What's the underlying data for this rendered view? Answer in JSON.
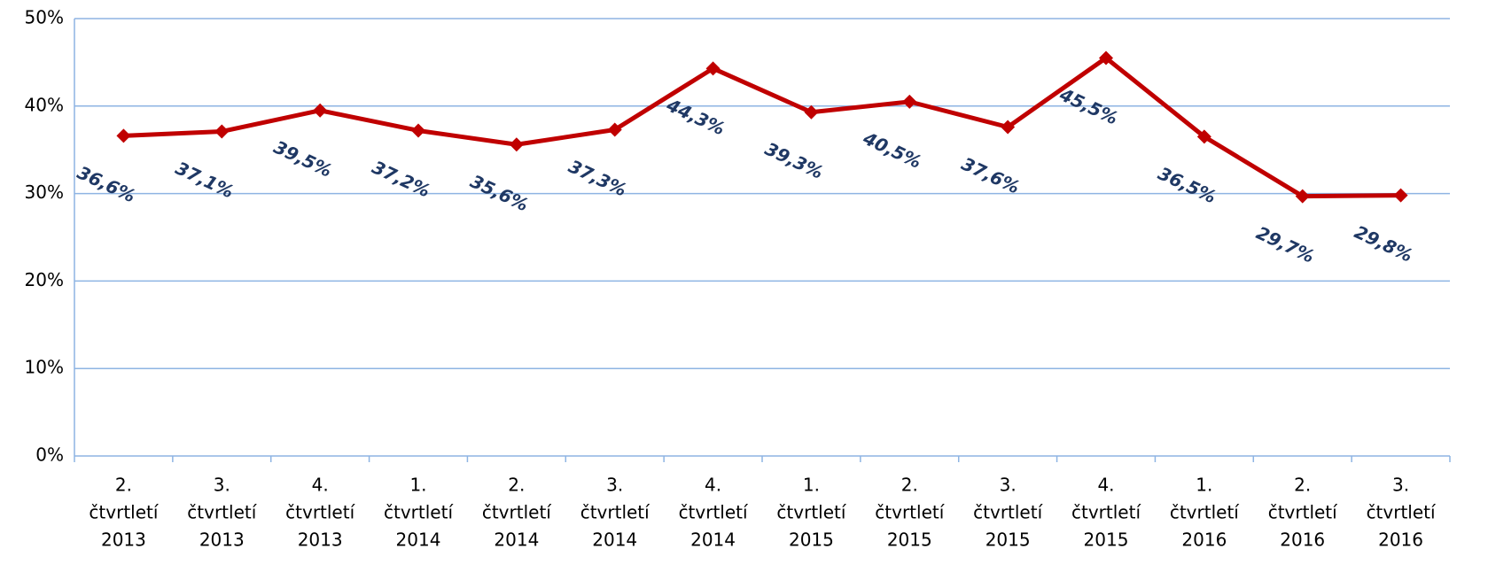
{
  "chart_data": {
    "type": "line",
    "categories": [
      [
        "2.",
        "čtvrtletí",
        "2013"
      ],
      [
        "3.",
        "čtvrtletí",
        "2013"
      ],
      [
        "4.",
        "čtvrtletí",
        "2013"
      ],
      [
        "1.",
        "čtvrtletí",
        "2014"
      ],
      [
        "2.",
        "čtvrtletí",
        "2014"
      ],
      [
        "3.",
        "čtvrtletí",
        "2014"
      ],
      [
        "4.",
        "čtvrtletí",
        "2014"
      ],
      [
        "1.",
        "čtvrtletí",
        "2015"
      ],
      [
        "2.",
        "čtvrtletí",
        "2015"
      ],
      [
        "3.",
        "čtvrtletí",
        "2015"
      ],
      [
        "4.",
        "čtvrtletí",
        "2015"
      ],
      [
        "1.",
        "čtvrtletí",
        "2016"
      ],
      [
        "2.",
        "čtvrtletí",
        "2016"
      ],
      [
        "3.",
        "čtvrtletí",
        "2016"
      ]
    ],
    "series": [
      {
        "color": "#c00000",
        "values": [
          36.6,
          37.1,
          39.5,
          37.2,
          35.6,
          37.3,
          44.3,
          39.3,
          40.5,
          37.6,
          45.5,
          36.5,
          29.7,
          29.8
        ],
        "value_labels": [
          "36,6%",
          "37,1%",
          "39,5%",
          "37,2%",
          "35,6%",
          "37,3%",
          "44,3%",
          "39,3%",
          "40,5%",
          "37,6%",
          "45,5%",
          "36,5%",
          "29,7%",
          "29,8%"
        ]
      }
    ],
    "ylim": [
      0,
      50
    ],
    "yticks": [
      {
        "value": 0,
        "label": "0%"
      },
      {
        "value": 10,
        "label": "10%"
      },
      {
        "value": 20,
        "label": "20%"
      },
      {
        "value": 30,
        "label": "30%"
      },
      {
        "value": 40,
        "label": "40%"
      },
      {
        "value": 50,
        "label": "50%"
      }
    ],
    "grid": true
  }
}
